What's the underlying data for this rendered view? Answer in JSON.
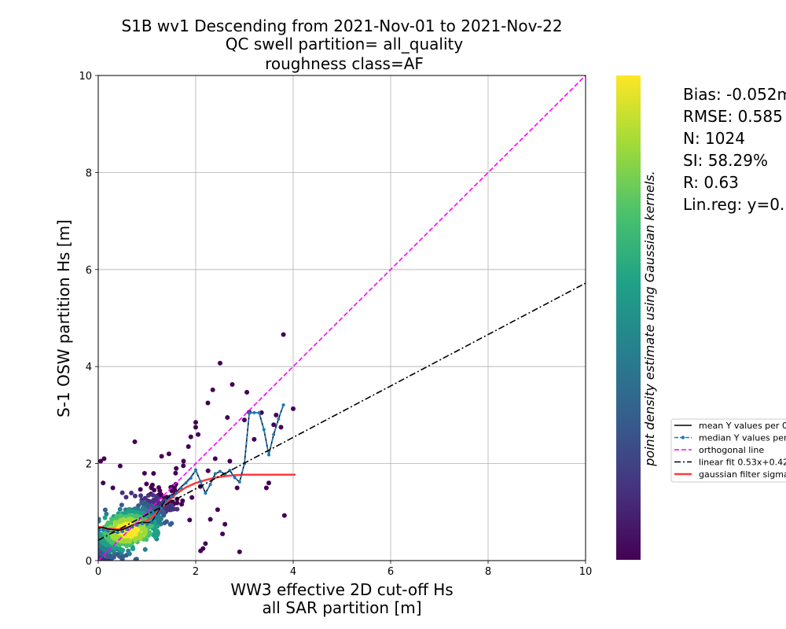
{
  "chart_data": {
    "type": "scatter",
    "title_lines": [
      "S1B wv1 Descending from 2021-Nov-01 to 2021-Nov-22",
      "QC swell partition= all_quality",
      "roughness class=AF"
    ],
    "xlabel_lines": [
      "WW3 effective 2D cut-off Hs",
      "all SAR partition [m]"
    ],
    "ylabel": "S-1 OSW partition Hs [m]",
    "xlim": [
      0,
      10
    ],
    "ylim": [
      0,
      10
    ],
    "xticks": [
      "0",
      "2",
      "4",
      "6",
      "8",
      "10"
    ],
    "yticks": [
      "0",
      "2",
      "4",
      "6",
      "8",
      "10"
    ],
    "grid": true,
    "colorbar_label": "point density estimate using Gaussian kernels.",
    "colormap": [
      "#440154",
      "#46327e",
      "#365c8d",
      "#277f8e",
      "#1fa187",
      "#4ac16d",
      "#a0da39",
      "#fde725"
    ],
    "stats": [
      "Bias: -0.052m",
      "RMSE: 0.585",
      "N: 1024",
      "SI: 58.29%",
      "R: 0.63",
      "Lin.reg: y=0."
    ],
    "legend": {
      "placement": "right, clipped at figure edge",
      "entries": [
        {
          "label": "mean Y values per 0",
          "color": "#000000",
          "style": "solid"
        },
        {
          "label": "median Y values per",
          "color": "#1f77b4",
          "style": "dashed-marker"
        },
        {
          "label": "orthogonal line",
          "color": "#ff00ff",
          "style": "dashed"
        },
        {
          "label": "linear fit 0.53x+0.42",
          "color": "#000000",
          "style": "dashdot"
        },
        {
          "label": "gaussian filter sigma",
          "color": "#ff3b3b",
          "style": "solid-thick"
        }
      ]
    },
    "series": [
      {
        "name": "orthogonal line",
        "x": [
          0,
          10
        ],
        "y": [
          0,
          10
        ]
      },
      {
        "name": "linear fit 0.53x+0.42",
        "x": [
          0,
          10
        ],
        "y": [
          0.42,
          5.72
        ]
      },
      {
        "name": "mean Y values per 0",
        "x": [
          0.0,
          0.1,
          0.2,
          0.3,
          0.4,
          0.5,
          0.6,
          0.7,
          0.8,
          0.9,
          1.0,
          1.1,
          1.2,
          1.3,
          1.4,
          1.5,
          1.6,
          1.7,
          1.8,
          1.9,
          2.0,
          2.1,
          2.2,
          2.3,
          2.4,
          2.5,
          2.6,
          2.7,
          2.8,
          2.9,
          3.0,
          3.1,
          3.2,
          3.3,
          3.4,
          3.5,
          3.6,
          3.7,
          3.8
        ],
        "y": [
          0.67,
          0.68,
          0.65,
          0.64,
          0.62,
          0.64,
          0.68,
          0.73,
          0.77,
          0.79,
          0.78,
          0.8,
          0.95,
          1.13,
          1.26,
          1.34,
          1.41,
          1.52,
          1.61,
          1.72,
          1.86,
          1.63,
          1.39,
          1.57,
          1.79,
          1.84,
          1.78,
          1.86,
          1.71,
          1.62,
          2.0,
          3.05,
          3.05,
          3.05,
          2.7,
          2.18,
          2.6,
          2.92,
          3.21
        ]
      },
      {
        "name": "median Y values per",
        "x": [
          0.0,
          0.1,
          0.2,
          0.3,
          0.4,
          0.5,
          0.6,
          0.7,
          0.8,
          0.9,
          1.0,
          1.1,
          1.2,
          1.3,
          1.4,
          1.5,
          1.6,
          1.7,
          1.8,
          1.9,
          2.0,
          2.1,
          2.2,
          2.3,
          2.4,
          2.5,
          2.6,
          2.7,
          2.8,
          2.9,
          3.0,
          3.1,
          3.2,
          3.3,
          3.4,
          3.5,
          3.6,
          3.7,
          3.8
        ],
        "y": [
          0.62,
          0.63,
          0.61,
          0.59,
          0.58,
          0.6,
          0.64,
          0.69,
          0.73,
          0.76,
          0.75,
          0.78,
          0.92,
          1.1,
          1.23,
          1.32,
          1.39,
          1.5,
          1.6,
          1.7,
          1.87,
          1.63,
          1.39,
          1.57,
          1.79,
          1.84,
          1.78,
          1.86,
          1.71,
          1.62,
          2.0,
          3.05,
          3.05,
          3.05,
          2.7,
          2.18,
          2.6,
          2.92,
          3.21
        ]
      },
      {
        "name": "gaussian filter sigma",
        "x": [
          0.0,
          0.2,
          0.4,
          0.6,
          0.8,
          1.0,
          1.2,
          1.4,
          1.6,
          1.8,
          2.0,
          2.2,
          2.4,
          2.6,
          2.8,
          3.0,
          3.2,
          3.4,
          3.6,
          3.8,
          4.05
        ],
        "y": [
          0.7,
          0.66,
          0.64,
          0.68,
          0.76,
          0.82,
          0.98,
          1.2,
          1.38,
          1.51,
          1.6,
          1.66,
          1.71,
          1.74,
          1.76,
          1.77,
          1.77,
          1.77,
          1.77,
          1.77,
          1.77
        ]
      }
    ],
    "scatter_outliers": {
      "x": [
        0.05,
        0.12,
        0.1,
        0.3,
        0.45,
        0.75,
        0.95,
        1.3,
        1.45,
        1.6,
        1.75,
        1.9,
        2.0,
        2.05,
        2.1,
        2.2,
        2.25,
        2.35,
        2.4,
        2.5,
        2.6,
        2.65,
        2.7,
        2.75,
        2.85,
        2.9,
        3.0,
        3.05,
        3.2,
        3.35,
        3.45,
        3.5,
        3.6,
        3.65,
        3.75,
        3.8,
        3.82,
        4.0,
        2.15,
        2.3,
        1.85,
        2.45,
        2.55,
        3.1,
        2.0
      ],
      "y": [
        2.05,
        2.1,
        1.6,
        1.5,
        1.95,
        2.45,
        1.8,
        2.15,
        2.2,
        1.9,
        2.05,
        2.55,
        2.85,
        2.6,
        0.2,
        0.35,
        3.25,
        3.52,
        2.1,
        4.07,
        0.75,
        2.95,
        2.05,
        3.63,
        1.5,
        0.18,
        2.9,
        3.47,
        2.5,
        3.05,
        1.5,
        1.6,
        2.8,
        3.0,
        2.75,
        4.66,
        0.93,
        3.13,
        0.25,
        0.85,
        2.35,
        1.05,
        0.55,
        3.06,
        2.75
      ]
    }
  }
}
